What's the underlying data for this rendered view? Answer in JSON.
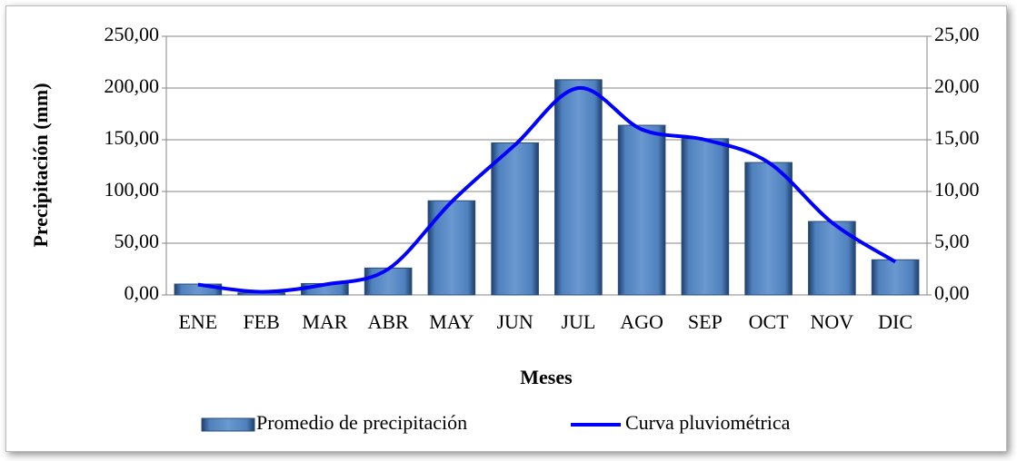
{
  "chart_data": {
    "type": "bar",
    "categories": [
      "ENE",
      "FEB",
      "MAR",
      "ABR",
      "MAY",
      "JUN",
      "JUL",
      "AGO",
      "SEP",
      "OCT",
      "NOV",
      "DIC"
    ],
    "x_label": "Meses",
    "y_label": "Precipitación (mm)",
    "series": [
      {
        "name": "Promedio de precipitación",
        "type": "bar",
        "color": "#4f81bd",
        "values": [
          10.5,
          2,
          11,
          26,
          91,
          147,
          208,
          164,
          151,
          128,
          71,
          34
        ]
      },
      {
        "name": "Curva pluviométrica",
        "type": "line",
        "axis": "y2",
        "color": "#0000ff",
        "values": [
          1.0,
          0.3,
          1.0,
          2.5,
          9.0,
          14.5,
          20.0,
          16.0,
          15.0,
          12.8,
          7.0,
          3.2
        ]
      }
    ],
    "ylim": [
      0,
      250
    ],
    "yticks": [
      {
        "value": 0,
        "label": "0,00"
      },
      {
        "value": 50,
        "label": "50,00"
      },
      {
        "value": 100,
        "label": "100,00"
      },
      {
        "value": 150,
        "label": "150,00"
      },
      {
        "value": 200,
        "label": "200,00"
      },
      {
        "value": 250,
        "label": "250,00"
      }
    ],
    "y2lim": [
      0,
      25
    ],
    "y2ticks": [
      {
        "value": 0,
        "label": "0,00"
      },
      {
        "value": 5,
        "label": "5,00"
      },
      {
        "value": 10,
        "label": "10,00"
      },
      {
        "value": 15,
        "label": "15,00"
      },
      {
        "value": 20,
        "label": "20,00"
      },
      {
        "value": 25,
        "label": "25,00"
      }
    ],
    "grid": true,
    "legend": "bottom"
  }
}
